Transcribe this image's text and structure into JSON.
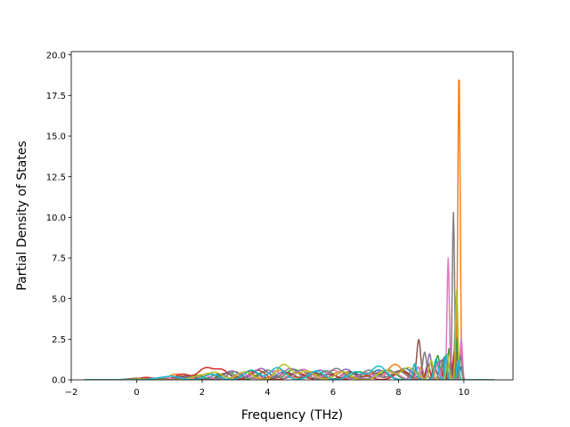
{
  "chart_data": {
    "type": "line",
    "title": "",
    "xlabel": "Frequency (THz)",
    "ylabel": "Partial Density of States",
    "xlim": [
      -2.0,
      11.5
    ],
    "ylim": [
      0,
      20.2
    ],
    "x_ticks": [
      -2,
      0,
      2,
      4,
      6,
      8,
      10
    ],
    "y_ticks": [
      0.0,
      2.5,
      5.0,
      7.5,
      10.0,
      12.5,
      15.0,
      17.5,
      20.0
    ],
    "x_tick_labels": [
      "−2",
      "0",
      "2",
      "4",
      "6",
      "8",
      "10"
    ],
    "y_tick_labels": [
      "0.0",
      "2.5",
      "5.0",
      "7.5",
      "10.0",
      "12.5",
      "15.0",
      "17.5",
      "20.0"
    ],
    "grid": false,
    "legend": "none",
    "x_range": [
      -1.6,
      10.95
    ],
    "series": [
      {
        "color": "#1f77b4",
        "peaks": [
          [
            -0.2,
            0.05
          ],
          [
            1.3,
            0.2
          ],
          [
            2.5,
            0.35
          ],
          [
            3.6,
            0.45
          ],
          [
            4.5,
            0.5
          ],
          [
            5.4,
            0.5
          ],
          [
            6.6,
            0.45
          ],
          [
            7.4,
            0.6
          ],
          [
            8.2,
            0.7
          ],
          [
            8.9,
            1.0
          ],
          [
            9.4,
            1.4
          ],
          [
            9.75,
            3.8
          ],
          [
            9.9,
            0.8
          ]
        ]
      },
      {
        "color": "#ff7f0e",
        "peaks": [
          [
            0.2,
            0.1
          ],
          [
            1.2,
            0.35
          ],
          [
            2.2,
            0.4
          ],
          [
            3.4,
            0.45
          ],
          [
            4.4,
            0.6
          ],
          [
            5.3,
            0.5
          ],
          [
            6.2,
            0.5
          ],
          [
            7.2,
            0.45
          ],
          [
            7.9,
            0.95
          ],
          [
            8.7,
            0.8
          ],
          [
            9.3,
            1.2
          ],
          [
            9.85,
            19.2
          ]
        ]
      },
      {
        "color": "#2ca02c",
        "peaks": [
          [
            0.6,
            0.1
          ],
          [
            1.8,
            0.3
          ],
          [
            2.8,
            0.45
          ],
          [
            3.9,
            0.5
          ],
          [
            4.8,
            0.65
          ],
          [
            5.8,
            0.55
          ],
          [
            6.8,
            0.5
          ],
          [
            7.7,
            0.6
          ],
          [
            8.5,
            0.9
          ],
          [
            9.2,
            1.5
          ],
          [
            9.55,
            2.0
          ],
          [
            9.8,
            2.6
          ]
        ]
      },
      {
        "color": "#d62728",
        "peaks": [
          [
            0.3,
            0.15
          ],
          [
            1.4,
            0.35
          ],
          [
            2.1,
            0.7
          ],
          [
            2.6,
            0.6
          ],
          [
            3.7,
            0.6
          ],
          [
            4.9,
            0.45
          ],
          [
            5.9,
            0.35
          ],
          [
            6.9,
            0.35
          ],
          [
            8.1,
            0.5
          ],
          [
            8.9,
            0.9
          ],
          [
            9.4,
            1.1
          ],
          [
            9.7,
            1.7
          ]
        ]
      },
      {
        "color": "#9467bd",
        "peaks": [
          [
            0.4,
            0.05
          ],
          [
            1.6,
            0.2
          ],
          [
            2.9,
            0.55
          ],
          [
            3.8,
            0.7
          ],
          [
            4.7,
            0.7
          ],
          [
            5.6,
            0.6
          ],
          [
            6.4,
            0.65
          ],
          [
            7.5,
            0.55
          ],
          [
            8.4,
            0.7
          ],
          [
            8.95,
            1.6
          ],
          [
            9.35,
            1.3
          ],
          [
            9.75,
            1.1
          ]
        ]
      },
      {
        "color": "#8c564b",
        "peaks": [
          [
            0.0,
            0.1
          ],
          [
            1.5,
            0.25
          ],
          [
            2.7,
            0.4
          ],
          [
            3.5,
            0.55
          ],
          [
            4.6,
            0.45
          ],
          [
            5.5,
            0.4
          ],
          [
            6.5,
            0.5
          ],
          [
            7.3,
            0.4
          ],
          [
            8.1,
            0.6
          ],
          [
            8.62,
            2.45
          ],
          [
            9.1,
            0.9
          ],
          [
            9.6,
            1.2
          ]
        ]
      },
      {
        "color": "#e377c2",
        "peaks": [
          [
            0.8,
            0.15
          ],
          [
            2.0,
            0.3
          ],
          [
            3.2,
            0.4
          ],
          [
            4.2,
            0.55
          ],
          [
            5.1,
            0.65
          ],
          [
            6.0,
            0.6
          ],
          [
            7.0,
            0.45
          ],
          [
            7.8,
            0.5
          ],
          [
            8.6,
            0.8
          ],
          [
            9.2,
            1.1
          ],
          [
            9.52,
            7.5
          ],
          [
            9.92,
            2.6
          ]
        ]
      },
      {
        "color": "#7f7f7f",
        "peaks": [
          [
            0.5,
            0.1
          ],
          [
            1.7,
            0.2
          ],
          [
            3.0,
            0.5
          ],
          [
            4.0,
            0.6
          ],
          [
            5.0,
            0.6
          ],
          [
            6.1,
            0.7
          ],
          [
            7.1,
            0.6
          ],
          [
            8.0,
            0.55
          ],
          [
            8.8,
            1.7
          ],
          [
            9.3,
            1.2
          ],
          [
            9.68,
            10.3
          ],
          [
            9.9,
            1.5
          ]
        ]
      },
      {
        "color": "#bcbd22",
        "peaks": [
          [
            0.1,
            0.05
          ],
          [
            1.9,
            0.25
          ],
          [
            2.4,
            0.45
          ],
          [
            3.3,
            0.5
          ],
          [
            4.5,
            0.95
          ],
          [
            5.2,
            0.55
          ],
          [
            6.3,
            0.5
          ],
          [
            7.6,
            0.6
          ],
          [
            8.3,
            0.75
          ],
          [
            9.0,
            1.2
          ],
          [
            9.5,
            1.6
          ],
          [
            9.78,
            5.5
          ]
        ]
      },
      {
        "color": "#17becf",
        "peaks": [
          [
            0.7,
            0.1
          ],
          [
            1.1,
            0.2
          ],
          [
            2.3,
            0.35
          ],
          [
            3.5,
            0.6
          ],
          [
            4.3,
            0.75
          ],
          [
            5.5,
            0.55
          ],
          [
            6.7,
            0.5
          ],
          [
            7.4,
            0.85
          ],
          [
            8.5,
            1.0
          ],
          [
            9.15,
            1.3
          ],
          [
            9.45,
            1.6
          ],
          [
            9.82,
            1.2
          ]
        ]
      }
    ]
  }
}
